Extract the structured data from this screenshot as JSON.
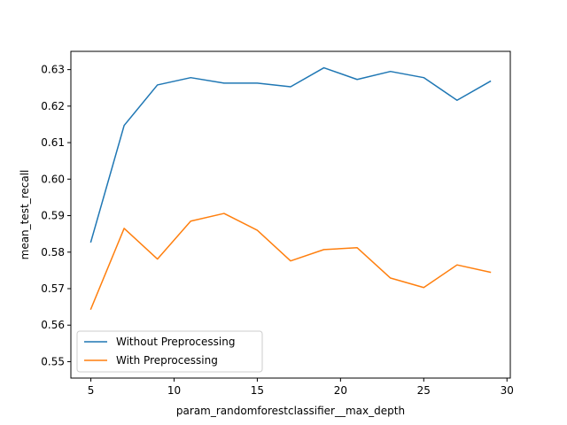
{
  "chart_data": {
    "type": "line",
    "title": "",
    "xlabel": "param_randomforestclassifier__max_depth",
    "ylabel": "mean_test_recall",
    "x": [
      5,
      7,
      9,
      11,
      13,
      15,
      17,
      19,
      21,
      23,
      25,
      27,
      29
    ],
    "xlim": [
      3.8,
      30.2
    ],
    "ylim": [
      0.5455,
      0.635
    ],
    "xticks": [
      5,
      10,
      15,
      20,
      25,
      30
    ],
    "yticks": [
      0.55,
      0.56,
      0.57,
      0.58,
      0.59,
      0.6,
      0.61,
      0.62,
      0.63
    ],
    "xtick_labels": [
      "5",
      "10",
      "15",
      "20",
      "25",
      "30"
    ],
    "ytick_labels": [
      "0.55",
      "0.56",
      "0.57",
      "0.58",
      "0.59",
      "0.60",
      "0.61",
      "0.62",
      "0.63"
    ],
    "grid": false,
    "legend_position": "lower-left",
    "series": [
      {
        "name": "Without Preprocessing",
        "color": "#1f77b4",
        "values": [
          0.5828,
          0.6147,
          0.6258,
          0.6278,
          0.6263,
          0.6263,
          0.6253,
          0.6305,
          0.6273,
          0.6295,
          0.6278,
          0.6216,
          0.6268
        ]
      },
      {
        "name": "With Preprocessing",
        "color": "#ff7f0e",
        "values": [
          0.5644,
          0.5865,
          0.5781,
          0.5885,
          0.5906,
          0.586,
          0.5776,
          0.5807,
          0.5812,
          0.5729,
          0.5703,
          0.5765,
          0.5745
        ]
      }
    ]
  }
}
